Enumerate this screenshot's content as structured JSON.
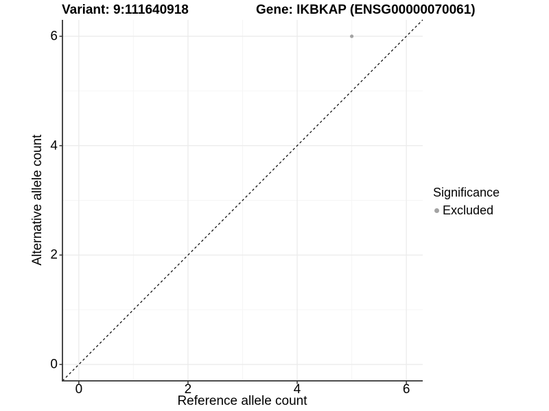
{
  "chart_data": {
    "type": "scatter",
    "title_left": "Variant: 9:111640918",
    "title_right": "Gene: IKBKAP (ENSG00000070061)",
    "xlabel": "Reference allele count",
    "ylabel": "Alternative allele count",
    "xlim": [
      -0.3,
      6.3
    ],
    "ylim": [
      -0.3,
      6.3
    ],
    "xticks": [
      0,
      2,
      4,
      6
    ],
    "yticks": [
      0,
      2,
      4,
      6
    ],
    "xminor": [
      1,
      3,
      5
    ],
    "yminor": [
      1,
      3,
      5
    ],
    "grid": "major and minor gridlines on white background, left and bottom axis lines only",
    "points": [
      {
        "x": 5,
        "y": 6,
        "significance": "Excluded"
      }
    ],
    "reference_line": {
      "type": "identity y=x",
      "dashed": true
    },
    "legend": {
      "title": "Significance",
      "position": "right",
      "entries": [
        {
          "label": "Excluded",
          "color": "#a3a3a3",
          "marker": "circle"
        }
      ]
    }
  },
  "colors": {
    "background": "#ffffff",
    "point": "#a3a3a3",
    "grid_major": "#ebebeb",
    "grid_minor": "#f5f5f5",
    "axis_line": "#333333",
    "dashed_line": "#000000",
    "text": "#000000"
  }
}
